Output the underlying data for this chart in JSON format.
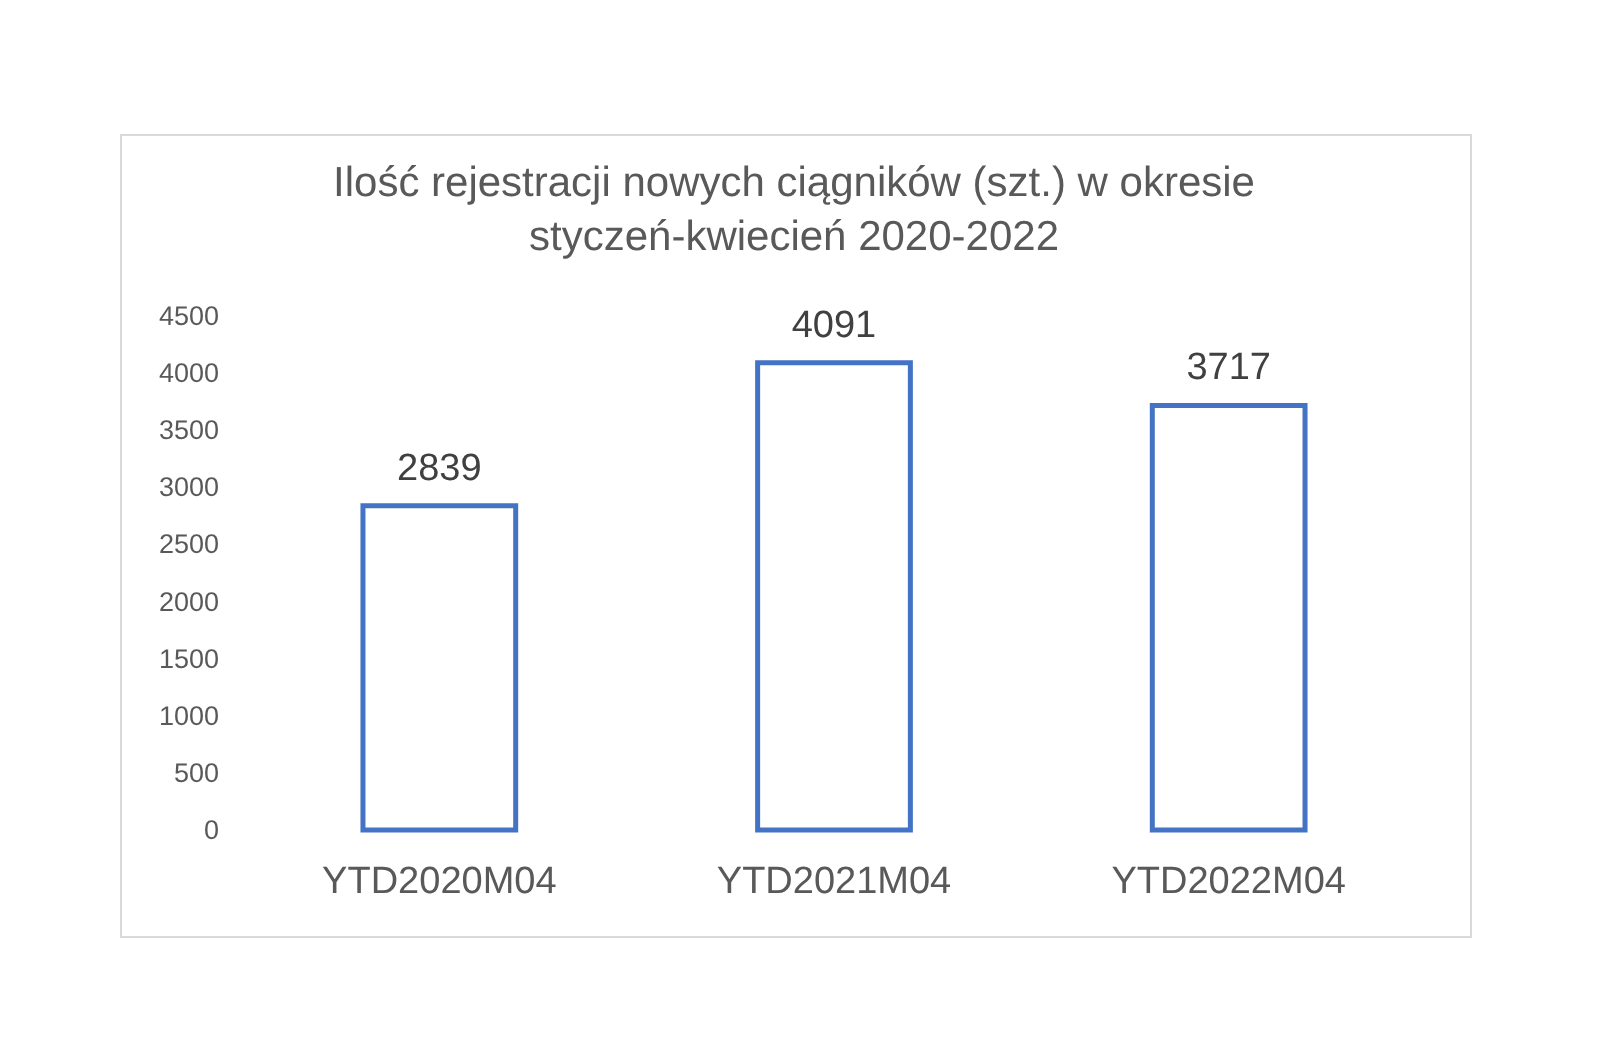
{
  "chart_data": {
    "type": "bar",
    "title": "Ilość rejestracji nowych ciągników (szt.) w okresie styczeń-kwiecień 2020-2022",
    "categories": [
      "YTD2020M04",
      "YTD2021M04",
      "YTD2022M04"
    ],
    "values": [
      2839,
      4091,
      3717
    ],
    "color": "#4472c4",
    "ylim": [
      0,
      4500
    ],
    "yticks": [
      0,
      500,
      1000,
      1500,
      2000,
      2500,
      3000,
      3500,
      4000,
      4500
    ],
    "grid": false,
    "data_labels": true
  }
}
